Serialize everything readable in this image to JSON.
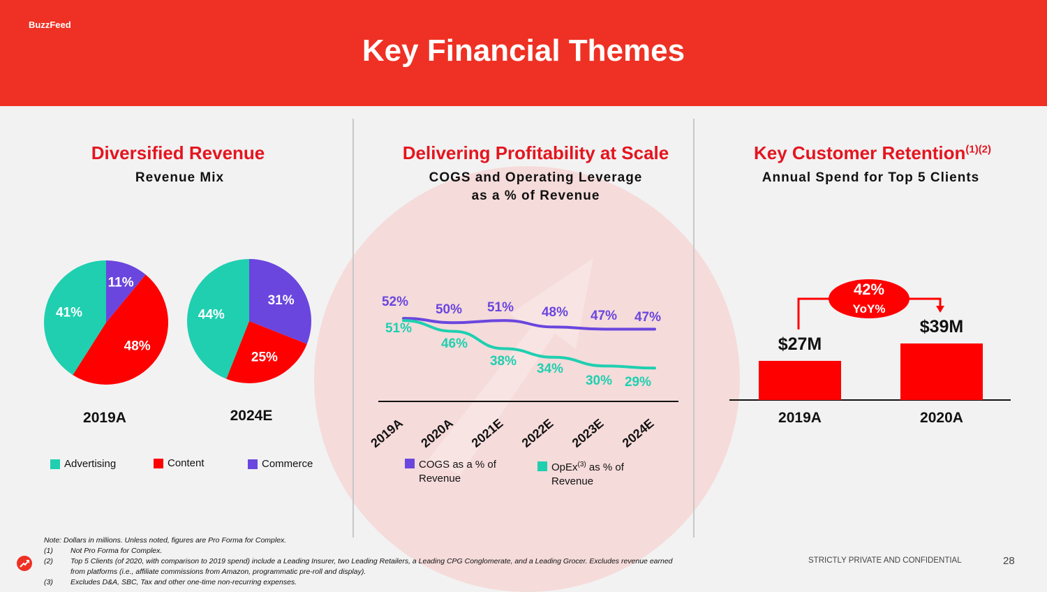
{
  "header": {
    "brand": "BuzzFeed",
    "title": "Key Financial Themes"
  },
  "colors": {
    "accent_red": "#ee3124",
    "series_red": "#ff0000",
    "teal": "#1fcfb0",
    "purple": "#6a46de"
  },
  "sections": {
    "revenue": {
      "title": "Diversified Revenue",
      "subtitle": "Revenue Mix"
    },
    "profitability": {
      "title": "Delivering Profitability at Scale",
      "subtitle_line1": "COGS and Operating Leverage",
      "subtitle_line2": "as a % of Revenue"
    },
    "retention": {
      "title": "Key Customer Retention",
      "title_sup": "(1)(2)",
      "subtitle": "Annual Spend for Top 5 Clients"
    }
  },
  "chart_data": [
    {
      "type": "pie",
      "title": "2019A",
      "labels": [
        "Advertising",
        "Content",
        "Commerce"
      ],
      "values": [
        41,
        48,
        11
      ],
      "value_labels": [
        "41%",
        "48%",
        "11%"
      ],
      "colors": [
        "#1fcfb0",
        "#ff0000",
        "#6a46de"
      ]
    },
    {
      "type": "pie",
      "title": "2024E",
      "labels": [
        "Advertising",
        "Content",
        "Commerce"
      ],
      "values": [
        44,
        25,
        31
      ],
      "value_labels": [
        "44%",
        "25%",
        "31%"
      ],
      "colors": [
        "#1fcfb0",
        "#ff0000",
        "#6a46de"
      ]
    },
    {
      "type": "line",
      "categories": [
        "2019A",
        "2020A",
        "2021E",
        "2022E",
        "2023E",
        "2024E"
      ],
      "series": [
        {
          "name": "COGS as a % of Revenue",
          "values": [
            52,
            50,
            51,
            48,
            47,
            47
          ],
          "labels": [
            "52%",
            "50%",
            "51%",
            "48%",
            "47%",
            "47%"
          ],
          "color": "#6a46de"
        },
        {
          "name": "OpEx(3) as % of Revenue",
          "values": [
            51,
            46,
            38,
            34,
            30,
            29
          ],
          "labels": [
            "51%",
            "46%",
            "38%",
            "34%",
            "30%",
            "29%"
          ],
          "color": "#1fcfb0"
        }
      ],
      "ylim": [
        20,
        60
      ],
      "grid": false
    },
    {
      "type": "bar",
      "categories": [
        "2019A",
        "2020A"
      ],
      "values": [
        27,
        39
      ],
      "value_labels": [
        "$27M",
        "$39M"
      ],
      "color": "#ff0000",
      "annotation": {
        "line1": "42%",
        "line2": "YoY%"
      },
      "ylim": [
        0,
        39
      ]
    }
  ],
  "legends": {
    "revenue": [
      {
        "label": "Advertising",
        "color": "#1fcfb0"
      },
      {
        "label": "Content",
        "color": "#ff0000"
      },
      {
        "label": "Commerce",
        "color": "#6a46de"
      }
    ],
    "profitability": {
      "cogs_line1": "COGS as a % of",
      "cogs_line2": "Revenue",
      "opex_pre": "OpEx",
      "opex_sup": "(3)",
      "opex_post": " as % of",
      "opex_line2": "Revenue"
    }
  },
  "notes": {
    "note": "Note: Dollars in millions. Unless noted, figures are Pro Forma for Complex.",
    "n1_num": "(1)",
    "n1": "Not Pro Forma for Complex.",
    "n2_num": "(2)",
    "n2": "Top 5 Clients (of 2020, with comparison to 2019 spend) include a Leading Insurer, two Leading Retailers, a Leading CPG Conglomerate, and a Leading Grocer. Excludes revenue earned",
    "n2_cont": "from platforms (i.e., affiliate commissions from Amazon, programmatic pre-roll and display).",
    "n3_num": "(3)",
    "n3": "Excludes D&A, SBC, Tax and other one-time non-recurring expenses."
  },
  "footer": {
    "confidential": "STRICTLY PRIVATE AND CONFIDENTIAL",
    "page": "28"
  }
}
